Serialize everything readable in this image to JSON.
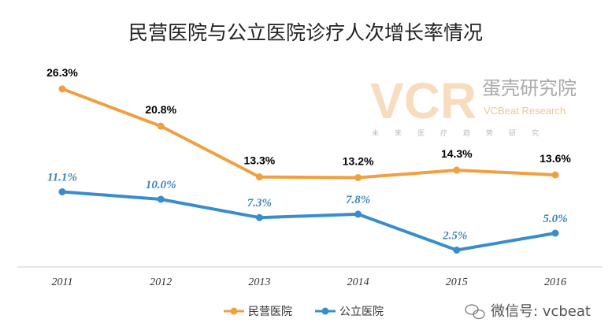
{
  "chart_data": {
    "type": "line",
    "title": "民营医院与公立医院诊疗人次增长率情况",
    "categories": [
      "2011",
      "2012",
      "2013",
      "2014",
      "2015",
      "2016"
    ],
    "series": [
      {
        "name": "民营医院",
        "values": [
          26.3,
          20.8,
          13.3,
          13.2,
          14.3,
          13.6
        ],
        "labels": [
          "26.3%",
          "20.8%",
          "13.3%",
          "13.2%",
          "14.3%",
          "13.6%"
        ],
        "color": "#f0a040"
      },
      {
        "name": "公立医院",
        "values": [
          11.1,
          10.0,
          7.3,
          7.8,
          2.5,
          5.0
        ],
        "labels": [
          "11.1%",
          "10.0%",
          "7.3%",
          "7.8%",
          "2.5%",
          "5.0%"
        ],
        "color": "#3a8dcc"
      }
    ],
    "ylim": [
      0,
      30
    ],
    "legend": "bottom-left",
    "grid": false
  },
  "watermark": {
    "logo": "VCR",
    "name": "蛋壳研究院",
    "english": "VCBeat Research",
    "slogan": "未来医疗趋势研究",
    "wechat": "微信号: vcbeat"
  }
}
